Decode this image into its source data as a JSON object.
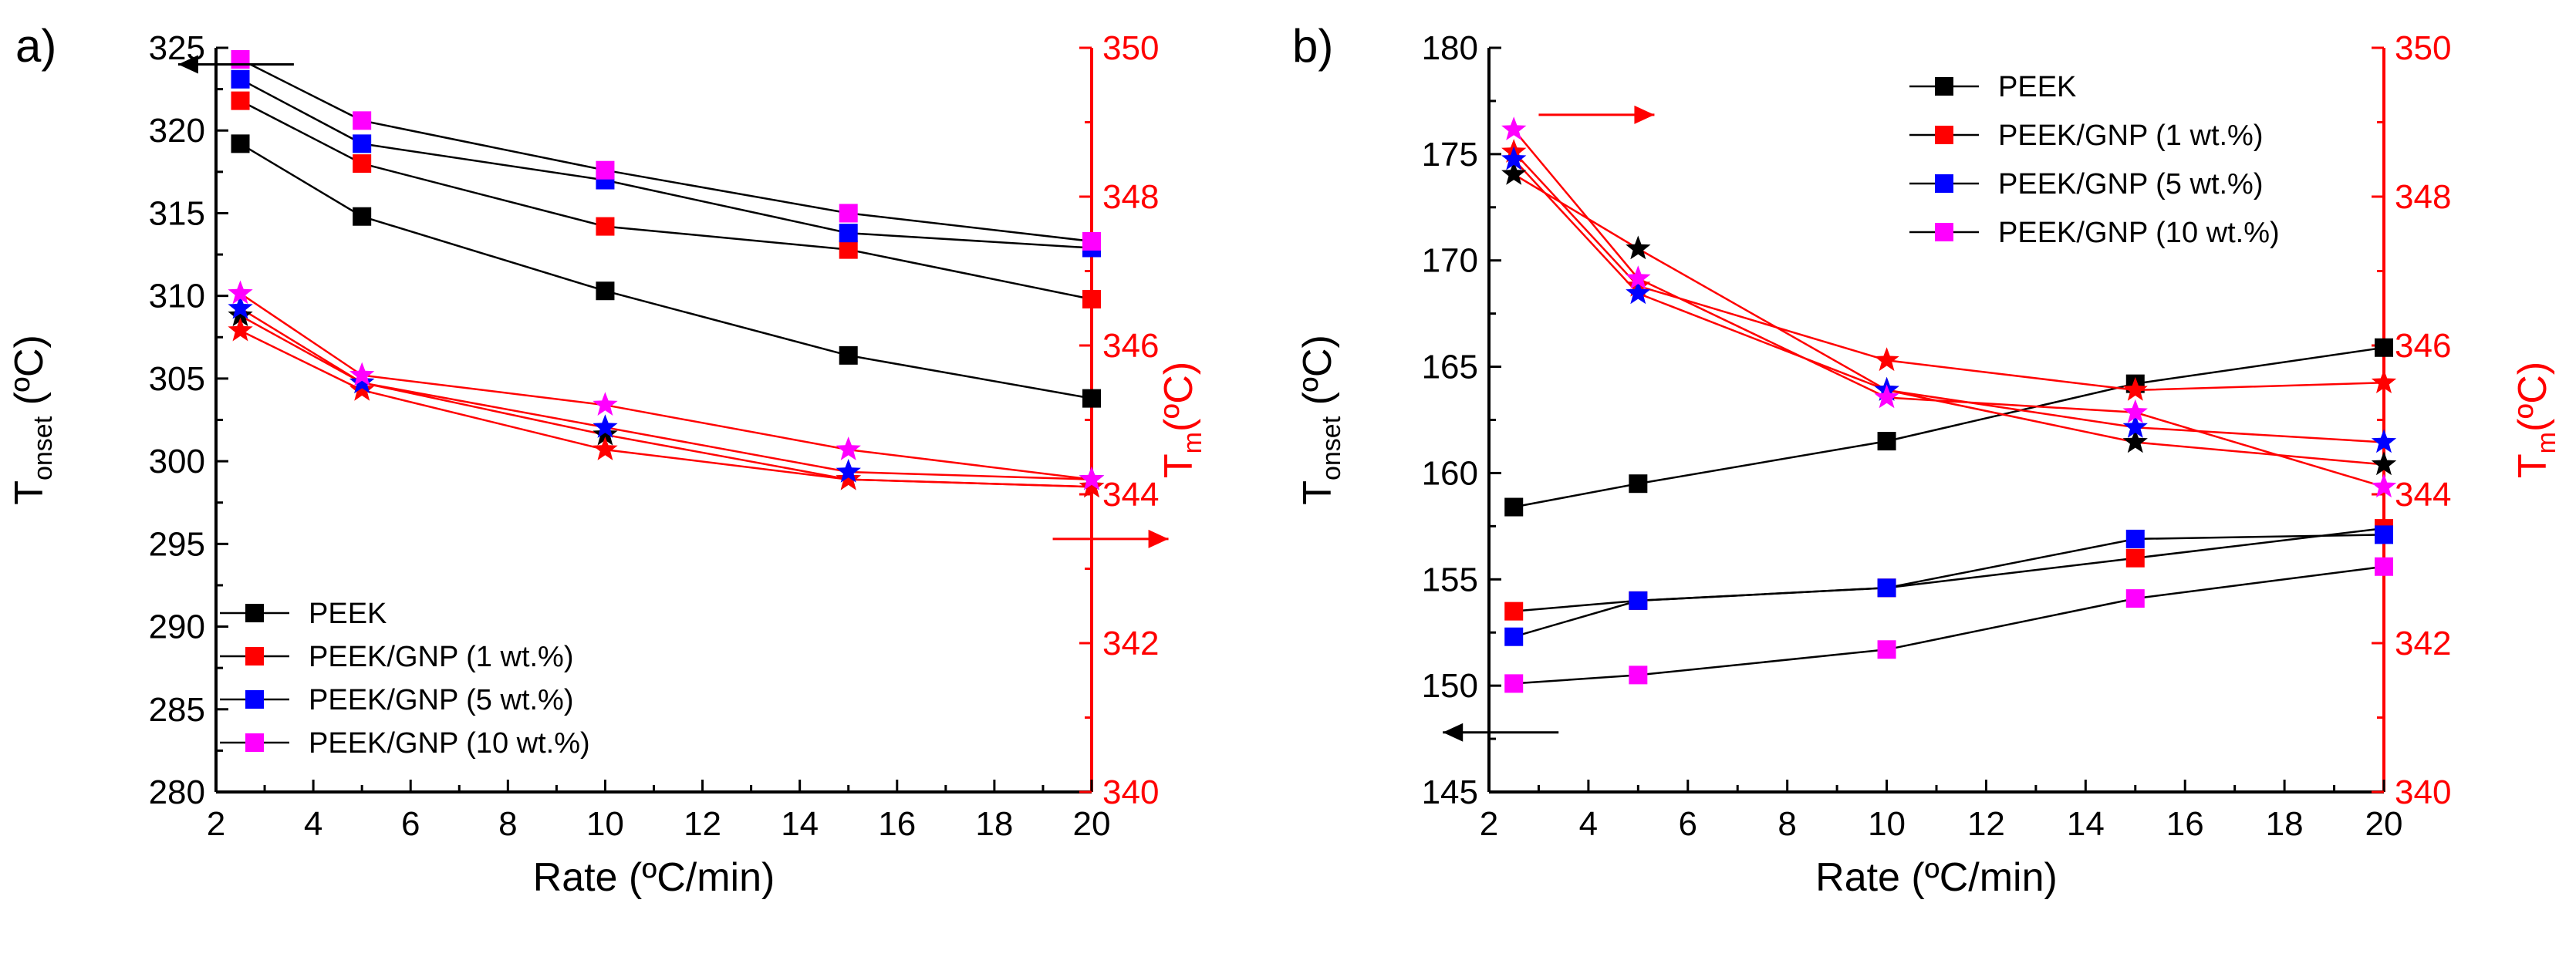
{
  "colors": {
    "axis_left": "#000000",
    "axis_right": "#ff0000",
    "connector_onset": "#000000",
    "connector_melt": "#ff0000",
    "PEEK": "#000000",
    "PEEK_GNP_1": "#ff0000",
    "PEEK_GNP_5": "#0000ff",
    "PEEK_GNP_10": "#ff00ff"
  },
  "chart_data": [
    {
      "type": "line",
      "panel_label": "a)",
      "xlabel": "Rate (ºC/min)",
      "ylabel_left": {
        "main": "T",
        "sub": "onset",
        "unit": " (ºC)"
      },
      "ylabel_right": {
        "main": "T",
        "sub": "m",
        "unit": "(ºC)"
      },
      "xlim": [
        2,
        20
      ],
      "xticks": [
        2,
        4,
        6,
        8,
        10,
        12,
        14,
        16,
        18,
        20
      ],
      "ylim_left": [
        280,
        325
      ],
      "yticks_left": [
        280,
        285,
        290,
        295,
        300,
        305,
        310,
        315,
        320,
        325
      ],
      "ylim_right": [
        340,
        350
      ],
      "yticks_right": [
        340,
        342,
        344,
        346,
        348,
        350
      ],
      "x": [
        2.5,
        5,
        10,
        15,
        20
      ],
      "onset_series": [
        {
          "name": "PEEK",
          "values": [
            319.2,
            314.8,
            310.3,
            306.4,
            303.8
          ]
        },
        {
          "name": "PEEK/GNP (1 wt.%)",
          "values": [
            321.8,
            318.0,
            314.2,
            312.8,
            309.8
          ]
        },
        {
          "name": "PEEK/GNP (5 wt.%)",
          "values": [
            323.1,
            319.2,
            317.0,
            313.8,
            312.9
          ]
        },
        {
          "name": "PEEK/GNP (10 wt.%)",
          "values": [
            324.3,
            320.6,
            317.6,
            315.0,
            313.3
          ]
        }
      ],
      "melt_series": [
        {
          "name": "PEEK",
          "values": [
            346.4,
            345.5,
            344.8,
            344.2,
            344.1
          ]
        },
        {
          "name": "PEEK/GNP (1 wt.%)",
          "values": [
            346.2,
            345.4,
            344.6,
            344.2,
            344.1
          ]
        },
        {
          "name": "PEEK/GNP (5 wt.%)",
          "values": [
            346.5,
            345.5,
            344.9,
            344.3,
            344.2
          ]
        },
        {
          "name": "PEEK/GNP (10 wt.%)",
          "values": [
            346.7,
            345.6,
            345.2,
            344.6,
            344.2
          ]
        }
      ],
      "legend": {
        "position": "bottom-left",
        "entries": [
          "PEEK",
          "PEEK/GNP (1 wt.%)",
          "PEEK/GNP (5 wt.%)",
          "PEEK/GNP (10 wt.%)"
        ]
      },
      "arrows": [
        {
          "name": "left-axis-arrow",
          "direction": "left",
          "color": "#000000",
          "x": 3.6,
          "y_axis": "left",
          "y": 324.0
        },
        {
          "name": "right-axis-arrow",
          "direction": "right",
          "color": "#ff0000",
          "x": 19.2,
          "y_axis": "right",
          "y": 343.4
        }
      ]
    },
    {
      "type": "line",
      "panel_label": "b)",
      "xlabel": "Rate (ºC/min)",
      "ylabel_left": {
        "main": "T",
        "sub": "onset",
        "unit": " (ºC)"
      },
      "ylabel_right": {
        "main": "T",
        "sub": "m",
        "unit": "(ºC)"
      },
      "xlim": [
        2,
        20
      ],
      "xticks": [
        2,
        4,
        6,
        8,
        10,
        12,
        14,
        16,
        18,
        20
      ],
      "ylim_left": [
        145,
        180
      ],
      "yticks_left": [
        145,
        150,
        155,
        160,
        165,
        170,
        175,
        180
      ],
      "ylim_right": [
        340,
        350
      ],
      "yticks_right": [
        340,
        342,
        344,
        346,
        348,
        350
      ],
      "x": [
        2.5,
        5,
        10,
        15,
        20
      ],
      "onset_series": [
        {
          "name": "PEEK",
          "values": [
            158.4,
            159.5,
            161.5,
            164.2,
            165.9
          ]
        },
        {
          "name": "PEEK/GNP (1 wt.%)",
          "values": [
            153.5,
            154.0,
            154.6,
            156.0,
            157.4
          ]
        },
        {
          "name": "PEEK/GNP (5 wt.%)",
          "values": [
            152.3,
            154.0,
            154.6,
            156.9,
            157.1
          ]
        },
        {
          "name": "PEEK/GNP (10 wt.%)",
          "values": [
            150.1,
            150.5,
            151.7,
            154.1,
            155.6
          ]
        }
      ],
      "melt_series": [
        {
          "name": "PEEK",
          "values": [
            348.3,
            347.3,
            345.4,
            344.7,
            344.4
          ]
        },
        {
          "name": "PEEK/GNP (1 wt.%)",
          "values": [
            348.6,
            346.8,
            345.8,
            345.4,
            345.5
          ]
        },
        {
          "name": "PEEK/GNP (5 wt.%)",
          "values": [
            348.5,
            346.7,
            345.4,
            344.9,
            344.7
          ]
        },
        {
          "name": "PEEK/GNP (10 wt.%)",
          "values": [
            348.9,
            346.9,
            345.3,
            345.1,
            344.1
          ]
        }
      ],
      "legend": {
        "position": "top-right",
        "entries": [
          "PEEK",
          "PEEK/GNP (1 wt.%)",
          "PEEK/GNP (5 wt.%)",
          "PEEK/GNP (10 wt.%)"
        ]
      },
      "arrows": [
        {
          "name": "right-axis-arrow",
          "direction": "right",
          "color": "#ff0000",
          "x": 3.0,
          "y_axis": "right",
          "y": 349.1
        },
        {
          "name": "left-axis-arrow",
          "direction": "left",
          "color": "#000000",
          "x": 3.4,
          "y_axis": "left",
          "y": 147.8
        }
      ]
    }
  ]
}
